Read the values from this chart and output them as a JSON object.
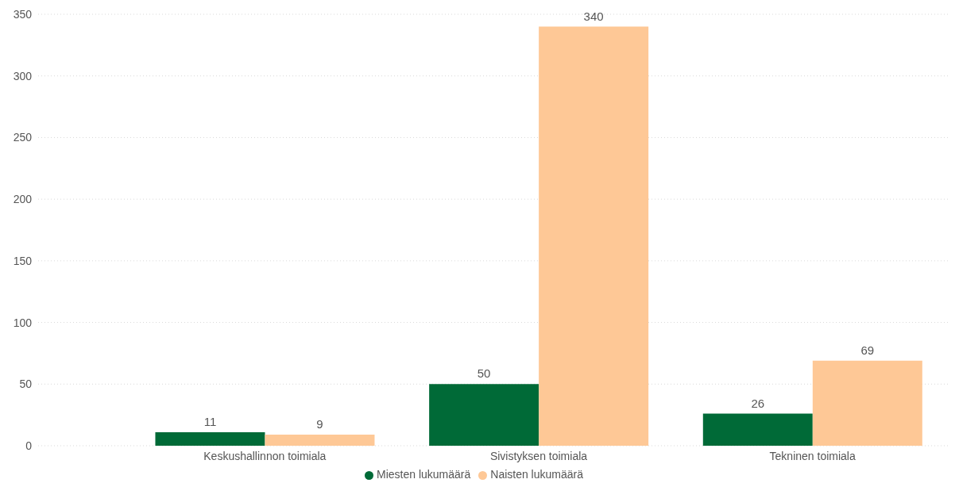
{
  "chart_data": {
    "type": "bar",
    "categories": [
      "Keskushallinnon toimiala",
      "Sivistyksen toimiala",
      "Tekninen toimiala"
    ],
    "series": [
      {
        "name": "Miesten lukumäärä",
        "color": "#006a37",
        "values": [
          11,
          50,
          26
        ]
      },
      {
        "name": "Naisten lukumäärä",
        "color": "#fec896",
        "values": [
          9,
          340,
          69
        ]
      }
    ],
    "ylim": [
      0,
      350
    ],
    "yticks": [
      0,
      50,
      100,
      150,
      200,
      250,
      300,
      350
    ],
    "grid": "y",
    "legend": "bottom",
    "data_labels": true
  }
}
